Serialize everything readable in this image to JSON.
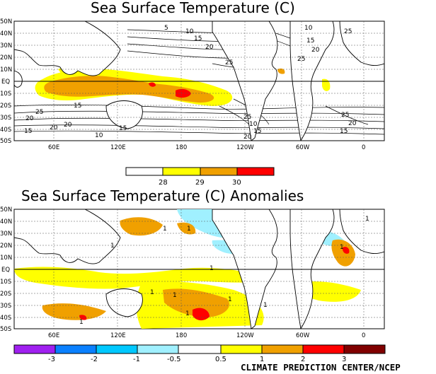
{
  "panels": [
    {
      "title": "Sea Surface Temperature (C)",
      "lat_labels": [
        "50N",
        "40N",
        "30N",
        "20N",
        "10N",
        "EQ",
        "10S",
        "20S",
        "30S",
        "40S",
        "50S"
      ],
      "lon_labels": [
        "60E",
        "120E",
        "180",
        "120W",
        "60W",
        "0"
      ],
      "contour_labels": [
        "5",
        "10",
        "15",
        "20",
        "25",
        "10",
        "15",
        "20",
        "25",
        "15",
        "20",
        "25",
        "15",
        "20",
        "25",
        "10",
        "15",
        "20",
        "25",
        "15",
        "20",
        "10",
        "15",
        "20",
        "25"
      ],
      "colorbar": {
        "colors": [
          "#ffff00",
          "#f0a000",
          "#ff0000"
        ],
        "labels": [
          "28",
          "29",
          "30"
        ]
      }
    },
    {
      "title": "Sea Surface Temperature (C) Anomalies",
      "lat_labels": [
        "50N",
        "40N",
        "30N",
        "20N",
        "10N",
        "EQ",
        "10S",
        "20S",
        "30S",
        "40S",
        "50S"
      ],
      "lon_labels": [
        "60E",
        "120E",
        "180",
        "120W",
        "60W",
        "0"
      ],
      "contour_labels": [
        "1",
        "1",
        "1",
        "1",
        "1",
        "1",
        "1",
        "1",
        "1",
        "1",
        "1",
        "1"
      ],
      "colorbar": {
        "colors": [
          "#a020f0",
          "#0a80ff",
          "#00c8ff",
          "#a0f0ff",
          "#ffffff",
          "#ffff00",
          "#f0a000",
          "#f06000",
          "#ff0000",
          "#800000"
        ],
        "labels": [
          "-3",
          "-2",
          "-1",
          "-0.5",
          "0.5",
          "1",
          "2",
          "3"
        ]
      }
    }
  ],
  "credit": "CLIMATE PREDICTION CENTER/NCEP",
  "colors": {
    "warm_28": "#ffff00",
    "warm_29": "#f0a000",
    "warm_30": "#ff0000",
    "cool_anom": "#a0f0ff",
    "land_line": "#000000"
  }
}
